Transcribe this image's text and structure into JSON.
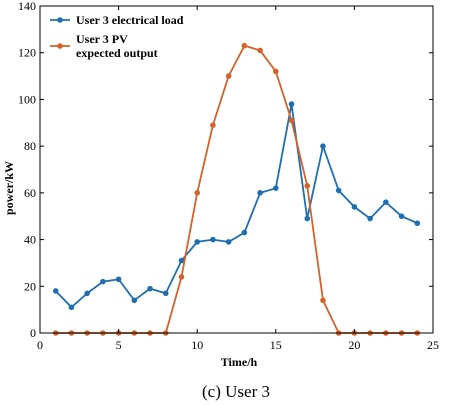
{
  "chart_data": {
    "type": "line",
    "caption": "(c) User 3",
    "xlabel": "Time/h",
    "ylabel": "power/kW",
    "xlim": [
      0,
      25
    ],
    "ylim": [
      0,
      140
    ],
    "xticks": [
      0,
      5,
      10,
      15,
      20,
      25
    ],
    "yticks": [
      0,
      20,
      40,
      60,
      80,
      100,
      120,
      140
    ],
    "grid": false,
    "legend_position": "top-left",
    "series": [
      {
        "name": "User 3 electrical load",
        "color": "#1f6fb0",
        "x": [
          1,
          2,
          3,
          4,
          5,
          6,
          7,
          8,
          9,
          10,
          11,
          12,
          13,
          14,
          15,
          16,
          17,
          18,
          19,
          20,
          21,
          22,
          23,
          24
        ],
        "values": [
          18,
          11,
          17,
          22,
          23,
          14,
          19,
          17,
          31,
          39,
          40,
          39,
          43,
          60,
          62,
          98,
          49,
          80,
          61,
          54,
          49,
          56,
          50,
          47
        ]
      },
      {
        "name": "User 3 PV expected output",
        "legend_lines": [
          "User 3 PV",
          "expected output"
        ],
        "color": "#d4622a",
        "x": [
          1,
          2,
          3,
          4,
          5,
          6,
          7,
          8,
          9,
          10,
          11,
          12,
          13,
          14,
          15,
          16,
          17,
          18,
          19,
          20,
          21,
          22,
          23,
          24
        ],
        "values": [
          0,
          0,
          0,
          0,
          0,
          0,
          0,
          0,
          24,
          60,
          89,
          110,
          123,
          121,
          112,
          91,
          63,
          14,
          0,
          0,
          0,
          0,
          0,
          0
        ]
      }
    ]
  }
}
